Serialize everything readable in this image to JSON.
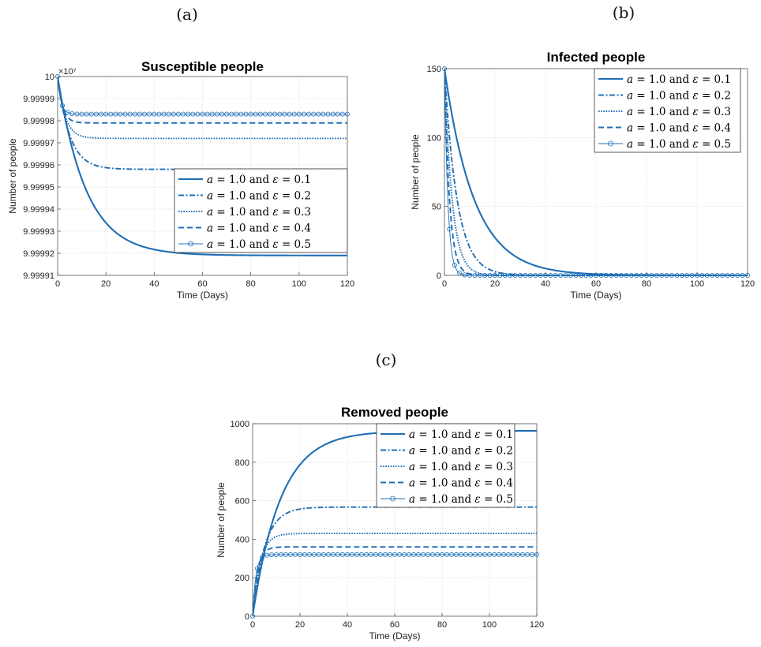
{
  "panel_labels": [
    "(a)",
    "(b)",
    "(c)"
  ],
  "style": {
    "line_color": "#1f6fb5",
    "grid_color": "#dcdcdc"
  },
  "legend_entries": [
    "a = 1.0 and ε = 0.1",
    "a = 1.0 and ε = 0.2",
    "a = 1.0 and ε = 0.3",
    "a = 1.0 and ε = 0.4",
    "a = 1.0 and ε = 0.5"
  ],
  "chart_data": [
    {
      "type": "line",
      "title": "Susceptible people",
      "xlabel": "Time (Days)",
      "ylabel": "Number of people",
      "exponent_label": "×10⁷",
      "xlim": [
        0,
        120
      ],
      "ylim": [
        9.99991,
        10
      ],
      "xticks": [
        0,
        20,
        40,
        60,
        80,
        100,
        120
      ],
      "xtick_labels": [
        "0",
        "20",
        "40",
        "60",
        "80",
        "100",
        "120"
      ],
      "yticks": [
        9.99991,
        9.99992,
        9.99993,
        9.99994,
        9.99995,
        9.99996,
        9.99997,
        9.99998,
        9.99999,
        10
      ],
      "ytick_labels": [
        "9.99991",
        "9.99992",
        "9.99993",
        "9.99994",
        "9.99995",
        "9.99996",
        "9.99997",
        "9.99998",
        "9.99999",
        "10"
      ],
      "legend_position": "center-right",
      "series": [
        {
          "name": "a = 1.0 and ε = 0.1",
          "style": "solid",
          "start": 10.0,
          "end": 9.999919,
          "k": 0.085
        },
        {
          "name": "a = 1.0 and ε = 0.2",
          "style": "dashdot",
          "start": 10.0,
          "end": 9.999958,
          "k": 0.2
        },
        {
          "name": "a = 1.0 and ε = 0.3",
          "style": "dotted",
          "start": 10.0,
          "end": 9.999972,
          "k": 0.33
        },
        {
          "name": "a = 1.0 and ε = 0.4",
          "style": "dashed",
          "start": 10.0,
          "end": 9.999979,
          "k": 0.5
        },
        {
          "name": "a = 1.0 and ε = 0.5",
          "style": "circle",
          "start": 10.0,
          "end": 9.999983,
          "k": 0.75
        }
      ]
    },
    {
      "type": "line",
      "title": "Infected people",
      "xlabel": "Time (Days)",
      "ylabel": "Number of people",
      "xlim": [
        0,
        120
      ],
      "ylim": [
        0,
        150
      ],
      "xticks": [
        0,
        20,
        40,
        60,
        80,
        100,
        120
      ],
      "xtick_labels": [
        "0",
        "20",
        "40",
        "60",
        "80",
        "100",
        "120"
      ],
      "yticks": [
        0,
        50,
        100,
        150
      ],
      "ytick_labels": [
        "0",
        "50",
        "100",
        "150"
      ],
      "legend_position": "top-right",
      "series": [
        {
          "name": "a = 1.0 and ε = 0.1",
          "style": "solid",
          "start": 150,
          "end": 0,
          "k": 0.085
        },
        {
          "name": "a = 1.0 and ε = 0.2",
          "style": "dashdot",
          "start": 150,
          "end": 0,
          "k": 0.2
        },
        {
          "name": "a = 1.0 and ε = 0.3",
          "style": "dotted",
          "start": 150,
          "end": 0,
          "k": 0.33
        },
        {
          "name": "a = 1.0 and ε = 0.4",
          "style": "dashed",
          "start": 150,
          "end": 0,
          "k": 0.5
        },
        {
          "name": "a = 1.0 and ε = 0.5",
          "style": "circle",
          "start": 150,
          "end": 0,
          "k": 0.75
        }
      ]
    },
    {
      "type": "line",
      "title": "Removed people",
      "xlabel": "Time (Days)",
      "ylabel": "Number of people",
      "xlim": [
        0,
        120
      ],
      "ylim": [
        0,
        1000
      ],
      "xticks": [
        0,
        20,
        40,
        60,
        80,
        100,
        120
      ],
      "xtick_labels": [
        "0",
        "20",
        "40",
        "60",
        "80",
        "100",
        "120"
      ],
      "yticks": [
        0,
        200,
        400,
        600,
        800,
        1000
      ],
      "ytick_labels": [
        "0",
        "200",
        "400",
        "600",
        "800",
        "1000"
      ],
      "legend_position": "top-right",
      "series": [
        {
          "name": "a = 1.0 and ε = 0.1",
          "style": "solid",
          "start": 0,
          "end": 963,
          "k": 0.085
        },
        {
          "name": "a = 1.0 and ε = 0.2",
          "style": "dashdot",
          "start": 0,
          "end": 567,
          "k": 0.2
        },
        {
          "name": "a = 1.0 and ε = 0.3",
          "style": "dotted",
          "start": 0,
          "end": 430,
          "k": 0.33
        },
        {
          "name": "a = 1.0 and ε = 0.4",
          "style": "dashed",
          "start": 0,
          "end": 360,
          "k": 0.5
        },
        {
          "name": "a = 1.0 and ε = 0.5",
          "style": "circle",
          "start": 0,
          "end": 320,
          "k": 0.75
        }
      ]
    }
  ]
}
